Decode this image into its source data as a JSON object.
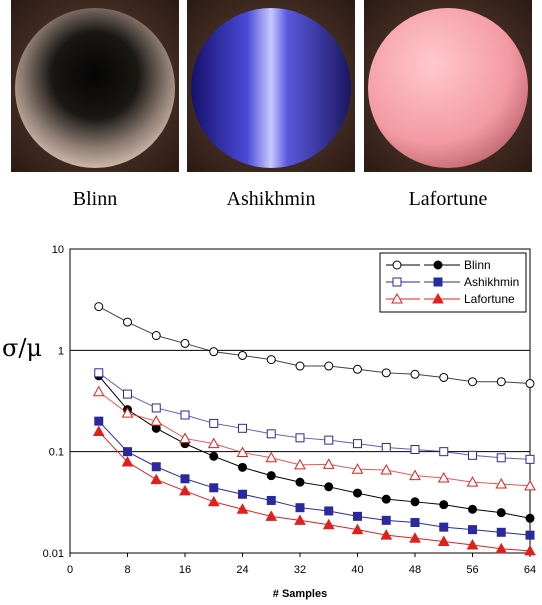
{
  "images": [
    {
      "label": "Blinn"
    },
    {
      "label": "Ashikhmin"
    },
    {
      "label": "Lafortune"
    }
  ],
  "chart_data": {
    "type": "line",
    "xlabel": "# Samples",
    "ylabel": "σ/μ",
    "x": [
      4,
      8,
      12,
      16,
      20,
      24,
      28,
      32,
      36,
      40,
      44,
      48,
      52,
      56,
      60,
      64
    ],
    "xlim": [
      0,
      64
    ],
    "xticks": [
      0,
      8,
      16,
      24,
      32,
      40,
      48,
      56,
      64
    ],
    "ylim": [
      0.01,
      10
    ],
    "yticks": [
      0.01,
      0.1,
      1,
      10
    ],
    "log_y": true,
    "grid": true,
    "legend": "upper right",
    "series": [
      {
        "name": "Blinn",
        "color": "#000000",
        "marker": "circle",
        "open_values": [
          2.7,
          1.9,
          1.4,
          1.17,
          0.97,
          0.89,
          0.81,
          0.7,
          0.7,
          0.65,
          0.6,
          0.58,
          0.54,
          0.49,
          0.49,
          0.47
        ],
        "filled_values": [
          0.56,
          0.26,
          0.17,
          0.12,
          0.09,
          0.07,
          0.058,
          0.05,
          0.045,
          0.039,
          0.034,
          0.032,
          0.03,
          0.027,
          0.025,
          0.022
        ]
      },
      {
        "name": "Ashikhmin",
        "color": "#2a2a9e",
        "marker": "square",
        "open_values": [
          0.6,
          0.37,
          0.27,
          0.23,
          0.19,
          0.17,
          0.15,
          0.137,
          0.13,
          0.12,
          0.11,
          0.105,
          0.1,
          0.092,
          0.087,
          0.084
        ],
        "filled_values": [
          0.2,
          0.1,
          0.071,
          0.054,
          0.044,
          0.038,
          0.033,
          0.028,
          0.026,
          0.023,
          0.021,
          0.02,
          0.018,
          0.017,
          0.016,
          0.015
        ]
      },
      {
        "name": "Lafortune",
        "color": "#e0201c",
        "marker": "triangle",
        "open_values": [
          0.39,
          0.24,
          0.2,
          0.135,
          0.12,
          0.098,
          0.087,
          0.074,
          0.075,
          0.067,
          0.066,
          0.058,
          0.055,
          0.05,
          0.048,
          0.046
        ],
        "filled_values": [
          0.158,
          0.079,
          0.053,
          0.041,
          0.032,
          0.027,
          0.023,
          0.021,
          0.019,
          0.017,
          0.015,
          0.014,
          0.013,
          0.012,
          0.011,
          0.0105
        ]
      }
    ]
  }
}
